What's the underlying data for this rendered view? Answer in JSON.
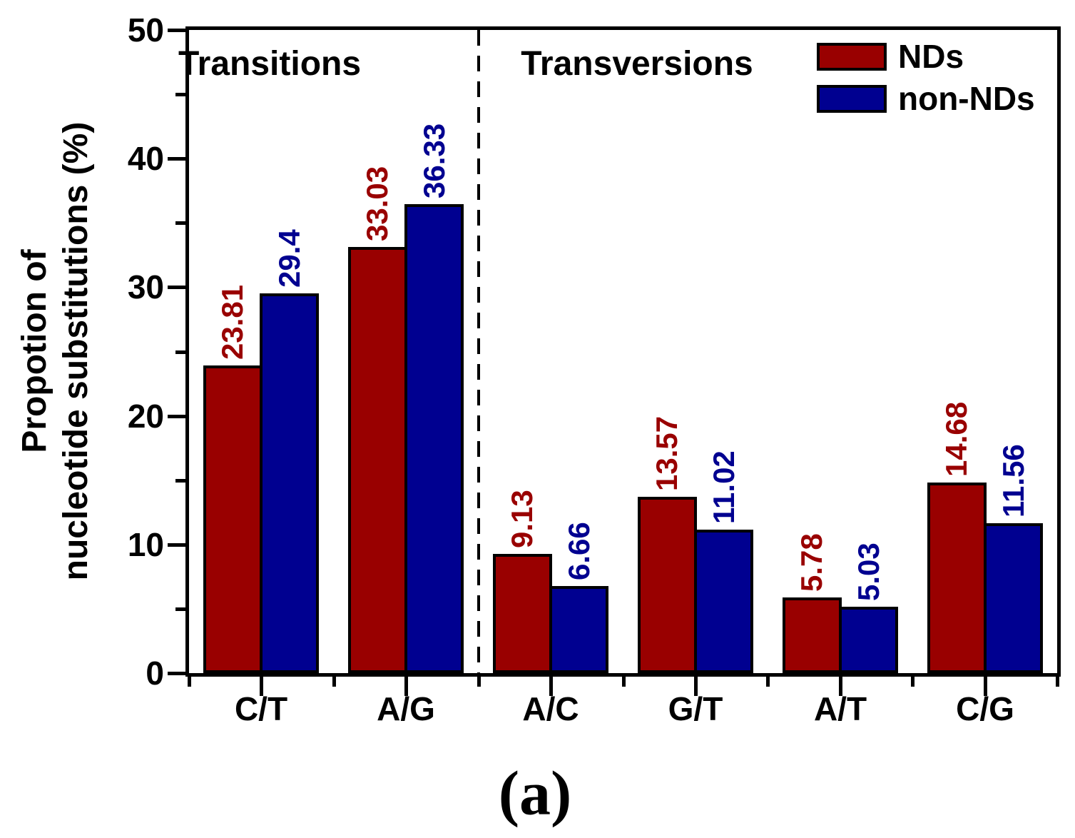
{
  "figure": {
    "caption": "(a)"
  },
  "chart_data": {
    "type": "bar",
    "title": "",
    "categories": [
      "C/T",
      "A/G",
      "A/C",
      "G/T",
      "A/T",
      "C/G"
    ],
    "series": [
      {
        "name": "NDs",
        "color": "#990000",
        "values": [
          23.81,
          33.03,
          9.13,
          13.57,
          5.78,
          14.68
        ],
        "value_labels": [
          "23.81",
          "33.03",
          "9.13",
          "13.57",
          "5.78",
          "14.68"
        ]
      },
      {
        "name": "non-NDs",
        "color": "#000090",
        "values": [
          29.4,
          36.33,
          6.66,
          11.02,
          5.03,
          11.56
        ],
        "value_labels": [
          "29.4",
          "36.33",
          "6.66",
          "11.02",
          "5.03",
          "11.56"
        ]
      }
    ],
    "ylabel_lines": [
      "Propotion of",
      "nucleotide substitutions (%)"
    ],
    "xlabel": "",
    "ylim": [
      0,
      50
    ],
    "yticks_major": [
      0,
      10,
      20,
      30,
      40,
      50
    ],
    "yticks_minor": [
      5,
      15,
      25,
      35,
      45
    ],
    "grid": false,
    "legend_position": "top-right",
    "region_labels": {
      "left": "Transitions",
      "right": "Transversions"
    },
    "divider_after_category_index": 1,
    "axis_color": "#000000",
    "background_color": "#ffffff"
  }
}
